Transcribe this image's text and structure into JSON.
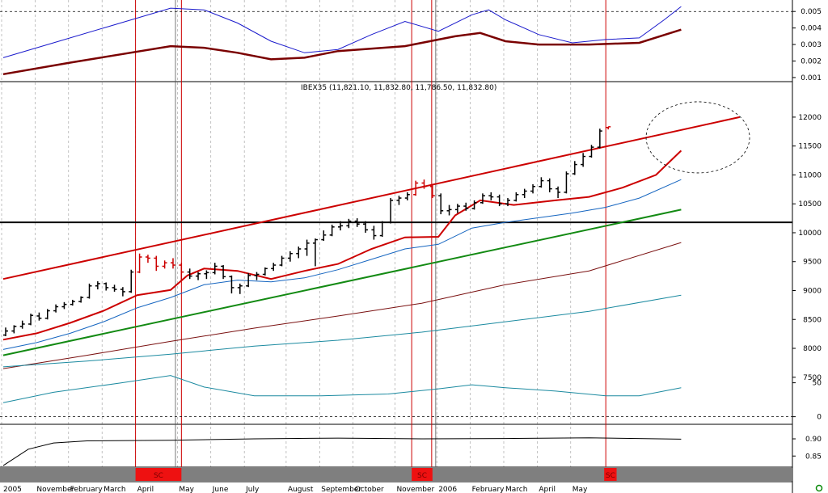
{
  "chart_data": {
    "type": "ohlc",
    "title": "IBEX35 (11,821.10, 11,832.80, 11,786.50, 11,832.80)",
    "months": [
      {
        "label": "November",
        "w": 4
      },
      {
        "label": "2005",
        "w": 0
      },
      {
        "label": "February",
        "w": 8
      },
      {
        "label": "March",
        "w": 12
      },
      {
        "label": "April",
        "w": 16
      },
      {
        "label": "May",
        "w": 21
      },
      {
        "label": "June",
        "w": 25
      },
      {
        "label": "July",
        "w": 29
      },
      {
        "label": "August",
        "w": 34
      },
      {
        "label": "September",
        "w": 38
      },
      {
        "label": "October",
        "w": 42
      },
      {
        "label": "November",
        "w": 47
      },
      {
        "label": "2006",
        "w": 52
      },
      {
        "label": "February",
        "w": 56
      },
      {
        "label": "March",
        "w": 60
      },
      {
        "label": "April",
        "w": 64
      },
      {
        "label": "May",
        "w": 68
      }
    ],
    "price_panel": {
      "ylim": [
        6700,
        12600
      ],
      "ticks": [
        "12000",
        "11500",
        "11000",
        "10500",
        "10000",
        "9500",
        "9000",
        "8500",
        "8000",
        "7500"
      ],
      "tick_values": [
        12000,
        11500,
        11000,
        10500,
        10000,
        9500,
        9000,
        8500,
        8000,
        7500
      ],
      "horizontal_level": 10180,
      "bars": [
        [
          8230,
          8360,
          8210,
          8300
        ],
        [
          8300,
          8400,
          8260,
          8380
        ],
        [
          8380,
          8480,
          8340,
          8420
        ],
        [
          8420,
          8600,
          8400,
          8570
        ],
        [
          8560,
          8620,
          8480,
          8520
        ],
        [
          8520,
          8680,
          8500,
          8650
        ],
        [
          8650,
          8760,
          8620,
          8720
        ],
        [
          8720,
          8800,
          8680,
          8760
        ],
        [
          8760,
          8840,
          8740,
          8810
        ],
        [
          8810,
          8900,
          8790,
          8880
        ],
        [
          8880,
          9120,
          8860,
          9080
        ],
        [
          9080,
          9160,
          9020,
          9120
        ],
        [
          9120,
          9140,
          9000,
          9050
        ],
        [
          9050,
          9100,
          8980,
          9020
        ],
        [
          9020,
          9060,
          8900,
          8980
        ],
        [
          8980,
          9360,
          8960,
          9320
        ],
        [
          9320,
          9640,
          9300,
          9580
        ],
        [
          9580,
          9620,
          9480,
          9560
        ],
        [
          9560,
          9600,
          9340,
          9420
        ],
        [
          9420,
          9520,
          9380,
          9480
        ],
        [
          9480,
          9560,
          9380,
          9440
        ],
        [
          9440,
          9480,
          9180,
          9320
        ],
        [
          9320,
          9380,
          9200,
          9250
        ],
        [
          9250,
          9320,
          9180,
          9290
        ],
        [
          9290,
          9350,
          9200,
          9310
        ],
        [
          9310,
          9480,
          9280,
          9420
        ],
        [
          9420,
          9440,
          9200,
          9240
        ],
        [
          9240,
          9260,
          8950,
          9050
        ],
        [
          9050,
          9120,
          8940,
          9080
        ],
        [
          9080,
          9300,
          9060,
          9260
        ],
        [
          9260,
          9320,
          9180,
          9280
        ],
        [
          9280,
          9400,
          9260,
          9380
        ],
        [
          9380,
          9480,
          9340,
          9440
        ],
        [
          9440,
          9600,
          9420,
          9560
        ],
        [
          9560,
          9680,
          9500,
          9640
        ],
        [
          9640,
          9760,
          9560,
          9720
        ],
        [
          9720,
          9880,
          9600,
          9820
        ],
        [
          9820,
          9900,
          9420,
          9880
        ],
        [
          9880,
          10040,
          9860,
          9960
        ],
        [
          9960,
          10140,
          9940,
          10100
        ],
        [
          10100,
          10200,
          10040,
          10120
        ],
        [
          10120,
          10240,
          10080,
          10200
        ],
        [
          10200,
          10250,
          10100,
          10150
        ],
        [
          10150,
          10200,
          10000,
          10050
        ],
        [
          10050,
          10120,
          9880,
          9950
        ],
        [
          9950,
          10200,
          9930,
          10180
        ],
        [
          10180,
          10600,
          10160,
          10560
        ],
        [
          10560,
          10640,
          10480,
          10600
        ],
        [
          10600,
          10700,
          10560,
          10660
        ],
        [
          10660,
          10900,
          10640,
          10860
        ],
        [
          10860,
          10920,
          10760,
          10800
        ],
        [
          10800,
          10820,
          10600,
          10640
        ],
        [
          10640,
          10680,
          10320,
          10380
        ],
        [
          10380,
          10480,
          10300,
          10400
        ],
        [
          10400,
          10500,
          10340,
          10460
        ],
        [
          10460,
          10520,
          10380,
          10420
        ],
        [
          10420,
          10560,
          10400,
          10520
        ],
        [
          10520,
          10680,
          10500,
          10640
        ],
        [
          10640,
          10700,
          10560,
          10620
        ],
        [
          10620,
          10660,
          10460,
          10500
        ],
        [
          10500,
          10600,
          10460,
          10560
        ],
        [
          10560,
          10700,
          10540,
          10660
        ],
        [
          10660,
          10760,
          10600,
          10720
        ],
        [
          10720,
          10840,
          10680,
          10800
        ],
        [
          10800,
          10960,
          10780,
          10900
        ],
        [
          10900,
          10940,
          10700,
          10760
        ],
        [
          10760,
          10800,
          10600,
          10700
        ],
        [
          10700,
          11060,
          10680,
          11020
        ],
        [
          11020,
          11240,
          11000,
          11180
        ],
        [
          11180,
          11380,
          11140,
          11320
        ],
        [
          11320,
          11520,
          11300,
          11480
        ],
        [
          11480,
          11800,
          11460,
          11760
        ],
        [
          11821,
          11833,
          11787,
          11833
        ]
      ],
      "signal_weeks": [
        16,
        17,
        18,
        19,
        20,
        21,
        49,
        50,
        51,
        72
      ],
      "series": [
        {
          "color": "#cc0000",
          "width": 2,
          "pts": [
            [
              0,
              8150
            ],
            [
              4,
              8260
            ],
            [
              8,
              8440
            ],
            [
              12,
              8650
            ],
            [
              16,
              8920
            ],
            [
              20,
              9010
            ],
            [
              22,
              9260
            ],
            [
              24,
              9380
            ],
            [
              28,
              9340
            ],
            [
              32,
              9200
            ],
            [
              36,
              9340
            ],
            [
              40,
              9460
            ],
            [
              44,
              9720
            ],
            [
              48,
              9920
            ],
            [
              52,
              9930
            ],
            [
              54,
              10300
            ],
            [
              57,
              10560
            ],
            [
              61,
              10480
            ],
            [
              66,
              10560
            ],
            [
              70,
              10620
            ],
            [
              74,
              10780
            ],
            [
              78,
              11000
            ],
            [
              81,
              11420
            ]
          ]
        },
        {
          "color": "#1565c0",
          "width": 1,
          "pts": [
            [
              0,
              7980
            ],
            [
              4,
              8100
            ],
            [
              8,
              8260
            ],
            [
              12,
              8460
            ],
            [
              16,
              8700
            ],
            [
              20,
              8880
            ],
            [
              24,
              9100
            ],
            [
              28,
              9180
            ],
            [
              32,
              9150
            ],
            [
              36,
              9220
            ],
            [
              40,
              9360
            ],
            [
              44,
              9540
            ],
            [
              48,
              9720
            ],
            [
              52,
              9800
            ],
            [
              56,
              10080
            ],
            [
              60,
              10180
            ],
            [
              64,
              10260
            ],
            [
              68,
              10340
            ],
            [
              72,
              10440
            ],
            [
              76,
              10600
            ],
            [
              81,
              10920
            ]
          ]
        },
        {
          "color": "#cc0000",
          "width": 2,
          "pts": [
            [
              0,
              9200
            ],
            [
              88,
              12000
            ]
          ]
        },
        {
          "color": "#138a13",
          "width": 2,
          "pts": [
            [
              0,
              7880
            ],
            [
              81,
              10400
            ]
          ]
        },
        {
          "color": "#7a1010",
          "width": 1,
          "pts": [
            [
              0,
              7650
            ],
            [
              10,
              7880
            ],
            [
              20,
              8120
            ],
            [
              30,
              8350
            ],
            [
              40,
              8560
            ],
            [
              50,
              8780
            ],
            [
              60,
              9100
            ],
            [
              70,
              9340
            ],
            [
              81,
              9830
            ]
          ]
        },
        {
          "color": "#1b8aa0",
          "width": 1,
          "pts": [
            [
              0,
              7680
            ],
            [
              10,
              7780
            ],
            [
              20,
              7900
            ],
            [
              30,
              8040
            ],
            [
              40,
              8140
            ],
            [
              50,
              8280
            ],
            [
              60,
              8460
            ],
            [
              70,
              8640
            ],
            [
              81,
              8920
            ]
          ]
        },
        {
          "color": "#1b8aa0",
          "width": 1,
          "pts": [
            [
              0,
              7060
            ],
            [
              6,
              7240
            ],
            [
              14,
              7400
            ],
            [
              20,
              7530
            ],
            [
              24,
              7330
            ],
            [
              30,
              7180
            ],
            [
              38,
              7180
            ],
            [
              46,
              7210
            ],
            [
              52,
              7300
            ],
            [
              56,
              7370
            ],
            [
              60,
              7320
            ],
            [
              66,
              7260
            ],
            [
              72,
              7180
            ],
            [
              76,
              7180
            ],
            [
              81,
              7320
            ]
          ]
        }
      ],
      "ellipse_center": [
        11650,
        83
      ]
    },
    "top_panel": {
      "ylim": [
        0.0008,
        0.0055
      ],
      "ticks": [
        "0.005",
        "0.004",
        "0.003",
        "0.002",
        "0.001"
      ],
      "tick_values": [
        0.005,
        0.004,
        0.003,
        0.002,
        0.001
      ],
      "reference_level": 0.005,
      "series": [
        {
          "color": "#1a1acc",
          "width": 1,
          "pts": [
            [
              0,
              0.0022
            ],
            [
              6,
              0.0031
            ],
            [
              12,
              0.004
            ],
            [
              16,
              0.0046
            ],
            [
              20,
              0.0052
            ],
            [
              24,
              0.0051
            ],
            [
              28,
              0.0043
            ],
            [
              32,
              0.0032
            ],
            [
              36,
              0.0025
            ],
            [
              40,
              0.0027
            ],
            [
              44,
              0.0036
            ],
            [
              48,
              0.0044
            ],
            [
              52,
              0.0038
            ],
            [
              56,
              0.0048
            ],
            [
              58,
              0.0051
            ],
            [
              60,
              0.0045
            ],
            [
              64,
              0.0036
            ],
            [
              68,
              0.0031
            ],
            [
              72,
              0.0033
            ],
            [
              76,
              0.0034
            ],
            [
              79,
              0.0045
            ],
            [
              81,
              0.0053
            ]
          ]
        },
        {
          "color": "#7a0000",
          "width": 2.5,
          "pts": [
            [
              0,
              0.0012
            ],
            [
              8,
              0.0019
            ],
            [
              14,
              0.0024
            ],
            [
              20,
              0.0029
            ],
            [
              24,
              0.0028
            ],
            [
              28,
              0.0025
            ],
            [
              32,
              0.0021
            ],
            [
              36,
              0.0022
            ],
            [
              40,
              0.0026
            ],
            [
              48,
              0.0029
            ],
            [
              54,
              0.0035
            ],
            [
              57,
              0.0037
            ],
            [
              60,
              0.0032
            ],
            [
              64,
              0.003
            ],
            [
              70,
              0.003
            ],
            [
              76,
              0.0031
            ],
            [
              81,
              0.0039
            ]
          ]
        }
      ]
    },
    "lower_panel": {
      "ticks": [
        "50",
        "0"
      ],
      "tick_values": [
        50,
        0
      ],
      "ylim": [
        -10,
        90
      ]
    },
    "bottom_panel": {
      "ticks": [
        "0.90",
        "0.85"
      ],
      "tick_values": [
        0.9,
        0.85
      ],
      "ylim": [
        0.82,
        0.94
      ],
      "series": [
        {
          "color": "#000000",
          "width": 1,
          "pts": [
            [
              0,
              0.822
            ],
            [
              3,
              0.87
            ],
            [
              6,
              0.888
            ],
            [
              10,
              0.894
            ],
            [
              20,
              0.896
            ],
            [
              30,
              0.9
            ],
            [
              40,
              0.902
            ],
            [
              50,
              0.9
            ],
            [
              60,
              0.901
            ],
            [
              70,
              0.903
            ],
            [
              81,
              0.899
            ]
          ]
        }
      ]
    },
    "signal_bar": {
      "label": "SC",
      "segments": [
        [
          16,
          21
        ],
        [
          49,
          51
        ],
        [
          72,
          73
        ]
      ]
    }
  }
}
